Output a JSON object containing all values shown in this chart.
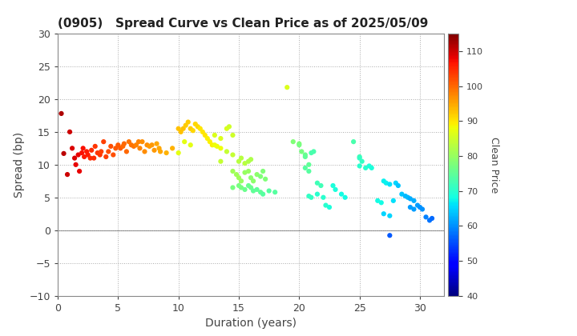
{
  "title": "(0905)   Spread Curve vs Clean Price as of 2025/05/09",
  "xlabel": "Duration (years)",
  "ylabel": "Spread (bp)",
  "colorbar_label": "Clean Price",
  "xlim": [
    0,
    32
  ],
  "ylim": [
    -10,
    30
  ],
  "xticks": [
    0,
    5,
    10,
    15,
    20,
    25,
    30
  ],
  "yticks": [
    -10,
    -5,
    0,
    5,
    10,
    15,
    20,
    25,
    30
  ],
  "color_min": 40,
  "color_max": 115,
  "colorbar_ticks": [
    40,
    50,
    60,
    70,
    80,
    90,
    100,
    110
  ],
  "points": [
    [
      0.3,
      17.8,
      112
    ],
    [
      0.5,
      11.7,
      111
    ],
    [
      0.8,
      8.5,
      110
    ],
    [
      1.0,
      15.0,
      110
    ],
    [
      1.2,
      12.5,
      109
    ],
    [
      1.4,
      11.0,
      109
    ],
    [
      1.5,
      10.0,
      108
    ],
    [
      1.7,
      11.5,
      108
    ],
    [
      1.8,
      9.0,
      108
    ],
    [
      2.0,
      11.8,
      107
    ],
    [
      2.1,
      12.5,
      107
    ],
    [
      2.2,
      11.2,
      106
    ],
    [
      2.4,
      12.0,
      106
    ],
    [
      2.5,
      11.5,
      106
    ],
    [
      2.7,
      11.0,
      105
    ],
    [
      2.8,
      12.2,
      105
    ],
    [
      3.0,
      11.0,
      105
    ],
    [
      3.1,
      12.8,
      104
    ],
    [
      3.3,
      11.8,
      104
    ],
    [
      3.5,
      11.5,
      104
    ],
    [
      3.6,
      12.0,
      103
    ],
    [
      3.8,
      13.5,
      103
    ],
    [
      4.0,
      11.2,
      103
    ],
    [
      4.2,
      12.0,
      102
    ],
    [
      4.4,
      12.8,
      102
    ],
    [
      4.6,
      11.5,
      102
    ],
    [
      4.8,
      12.5,
      101
    ],
    [
      5.0,
      13.0,
      101
    ],
    [
      5.2,
      12.5,
      101
    ],
    [
      5.4,
      12.8,
      100
    ],
    [
      5.5,
      13.2,
      100
    ],
    [
      5.7,
      12.0,
      100
    ],
    [
      5.9,
      13.5,
      99
    ],
    [
      6.1,
      13.0,
      99
    ],
    [
      6.3,
      12.8,
      99
    ],
    [
      6.5,
      13.0,
      98
    ],
    [
      6.7,
      13.5,
      98
    ],
    [
      6.8,
      12.5,
      98
    ],
    [
      7.0,
      13.5,
      97
    ],
    [
      7.2,
      12.0,
      97
    ],
    [
      7.4,
      13.0,
      97
    ],
    [
      7.6,
      12.8,
      96
    ],
    [
      7.8,
      13.0,
      96
    ],
    [
      8.0,
      12.2,
      96
    ],
    [
      8.2,
      13.2,
      95
    ],
    [
      8.4,
      12.5,
      95
    ],
    [
      8.5,
      12.0,
      95
    ],
    [
      9.0,
      11.8,
      94
    ],
    [
      9.5,
      12.5,
      94
    ],
    [
      10.0,
      15.5,
      93
    ],
    [
      10.2,
      15.0,
      93
    ],
    [
      10.4,
      15.5,
      93
    ],
    [
      10.6,
      16.0,
      92
    ],
    [
      10.8,
      16.5,
      92
    ],
    [
      11.0,
      15.5,
      92
    ],
    [
      11.2,
      15.2,
      91
    ],
    [
      11.4,
      16.2,
      91
    ],
    [
      11.6,
      15.8,
      91
    ],
    [
      11.8,
      15.5,
      90
    ],
    [
      12.0,
      15.0,
      90
    ],
    [
      12.2,
      14.5,
      90
    ],
    [
      12.4,
      14.0,
      89
    ],
    [
      12.6,
      13.5,
      89
    ],
    [
      12.8,
      13.0,
      89
    ],
    [
      13.0,
      13.0,
      88
    ],
    [
      13.2,
      12.8,
      88
    ],
    [
      13.5,
      12.5,
      88
    ],
    [
      10.0,
      11.8,
      87
    ],
    [
      10.5,
      13.5,
      87
    ],
    [
      11.0,
      13.0,
      87
    ],
    [
      13.0,
      14.5,
      86
    ],
    [
      13.5,
      14.0,
      86
    ],
    [
      14.0,
      15.5,
      86
    ],
    [
      14.2,
      15.8,
      85
    ],
    [
      14.5,
      14.5,
      85
    ],
    [
      13.5,
      10.5,
      84
    ],
    [
      14.0,
      12.0,
      84
    ],
    [
      14.5,
      11.5,
      84
    ],
    [
      15.0,
      10.5,
      83
    ],
    [
      15.2,
      11.0,
      83
    ],
    [
      15.5,
      10.2,
      83
    ],
    [
      15.8,
      10.5,
      82
    ],
    [
      16.0,
      10.8,
      82
    ],
    [
      14.5,
      9.0,
      81
    ],
    [
      14.8,
      8.5,
      81
    ],
    [
      15.0,
      8.0,
      81
    ],
    [
      15.2,
      7.5,
      80
    ],
    [
      15.5,
      8.8,
      80
    ],
    [
      15.8,
      9.0,
      80
    ],
    [
      16.0,
      8.0,
      79
    ],
    [
      16.2,
      7.5,
      79
    ],
    [
      16.5,
      8.5,
      79
    ],
    [
      16.8,
      8.2,
      78
    ],
    [
      17.0,
      9.0,
      78
    ],
    [
      17.2,
      7.8,
      78
    ],
    [
      14.5,
      6.5,
      77
    ],
    [
      15.0,
      6.8,
      77
    ],
    [
      15.2,
      6.5,
      77
    ],
    [
      15.5,
      6.2,
      76
    ],
    [
      15.8,
      6.8,
      76
    ],
    [
      16.0,
      6.5,
      76
    ],
    [
      16.2,
      6.0,
      75
    ],
    [
      16.5,
      6.2,
      75
    ],
    [
      16.8,
      5.8,
      75
    ],
    [
      17.0,
      5.5,
      74
    ],
    [
      17.5,
      6.0,
      74
    ],
    [
      18.0,
      5.8,
      74
    ],
    [
      19.0,
      21.8,
      86
    ],
    [
      19.5,
      13.5,
      78
    ],
    [
      20.0,
      13.2,
      78
    ],
    [
      20.0,
      13.0,
      77
    ],
    [
      20.2,
      12.0,
      77
    ],
    [
      20.5,
      11.5,
      76
    ],
    [
      20.5,
      11.2,
      75
    ],
    [
      20.8,
      10.0,
      75
    ],
    [
      20.5,
      9.5,
      74
    ],
    [
      20.8,
      9.0,
      74
    ],
    [
      21.0,
      11.8,
      73
    ],
    [
      21.2,
      12.0,
      73
    ],
    [
      21.5,
      7.2,
      72
    ],
    [
      21.8,
      6.8,
      72
    ],
    [
      20.8,
      5.2,
      71
    ],
    [
      21.0,
      5.0,
      71
    ],
    [
      21.5,
      5.5,
      70
    ],
    [
      22.0,
      5.0,
      70
    ],
    [
      22.2,
      3.8,
      70
    ],
    [
      22.5,
      3.5,
      69
    ],
    [
      22.8,
      6.8,
      69
    ],
    [
      23.0,
      6.2,
      69
    ],
    [
      23.5,
      5.5,
      68
    ],
    [
      23.8,
      5.0,
      68
    ],
    [
      24.5,
      13.5,
      73
    ],
    [
      25.0,
      11.2,
      72
    ],
    [
      25.0,
      11.0,
      71
    ],
    [
      25.2,
      10.5,
      71
    ],
    [
      25.0,
      9.8,
      70
    ],
    [
      25.5,
      9.5,
      70
    ],
    [
      25.8,
      9.8,
      69
    ],
    [
      26.0,
      9.5,
      69
    ],
    [
      26.5,
      4.5,
      68
    ],
    [
      26.8,
      4.2,
      68
    ],
    [
      27.0,
      7.5,
      67
    ],
    [
      27.2,
      7.2,
      67
    ],
    [
      27.5,
      7.0,
      66
    ],
    [
      27.8,
      4.5,
      66
    ],
    [
      27.0,
      2.5,
      65
    ],
    [
      27.5,
      2.2,
      65
    ],
    [
      28.0,
      7.2,
      65
    ],
    [
      28.2,
      6.8,
      64
    ],
    [
      28.5,
      5.5,
      64
    ],
    [
      28.8,
      5.2,
      63
    ],
    [
      29.0,
      5.0,
      63
    ],
    [
      29.2,
      4.8,
      62
    ],
    [
      29.5,
      4.5,
      62
    ],
    [
      29.8,
      3.8,
      61
    ],
    [
      29.2,
      3.5,
      61
    ],
    [
      29.5,
      3.2,
      61
    ],
    [
      30.0,
      3.5,
      60
    ],
    [
      30.2,
      3.2,
      60
    ],
    [
      30.5,
      2.0,
      59
    ],
    [
      30.8,
      1.5,
      58
    ],
    [
      31.0,
      1.8,
      57
    ],
    [
      27.5,
      -0.8,
      56
    ]
  ]
}
